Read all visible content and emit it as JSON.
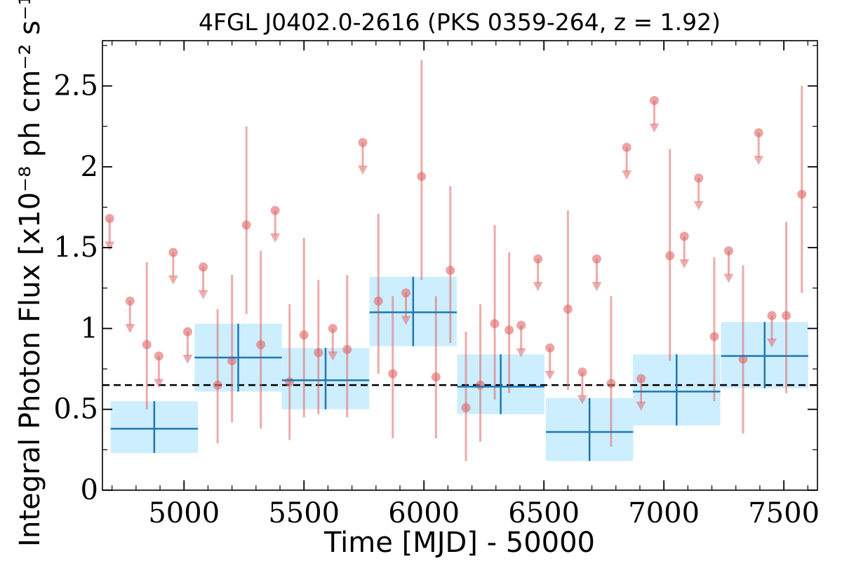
{
  "chart_data": {
    "type": "scatter",
    "title": "4FGL J0402.0-2616 (PKS 0359-264, z = 1.92)",
    "xlabel": "Time [MJD] - 50000",
    "ylabel": "Integral Photon Flux [x10⁻⁸ ph cm⁻² s⁻¹]",
    "xlim": [
      4660,
      7640
    ],
    "ylim": [
      0,
      2.78
    ],
    "xticks": [
      5000,
      5500,
      6000,
      6500,
      7000,
      7500
    ],
    "xtick_labels": [
      "5000",
      "5500",
      "6000",
      "6500",
      "7000",
      "7500"
    ],
    "yticks": [
      0,
      0.5,
      1,
      1.5,
      2,
      2.5
    ],
    "ytick_labels": [
      "0",
      "0.5",
      "1",
      "1.5",
      "2",
      "2.5"
    ],
    "reference_line": {
      "y": 0.65,
      "style": "dashed"
    },
    "colors": {
      "detection": "#e06666",
      "upper_limit": "#e06666",
      "binned_marker": "#1f77b4",
      "binned_box": "#cdeefe",
      "reference_line": "#000000"
    },
    "series": [
      {
        "kind": "binned",
        "points": [
          {
            "x": 4876,
            "xerr": 182,
            "y": 0.38,
            "ylow": 0.23,
            "yhigh": 0.55
          },
          {
            "x": 5226,
            "xerr": 182,
            "y": 0.82,
            "ylow": 0.61,
            "yhigh": 1.03
          },
          {
            "x": 5590,
            "xerr": 182,
            "y": 0.68,
            "ylow": 0.5,
            "yhigh": 0.88
          },
          {
            "x": 5955,
            "xerr": 182,
            "y": 1.1,
            "ylow": 0.89,
            "yhigh": 1.32
          },
          {
            "x": 6320,
            "xerr": 182,
            "y": 0.64,
            "ylow": 0.47,
            "yhigh": 0.84
          },
          {
            "x": 6690,
            "xerr": 182,
            "y": 0.36,
            "ylow": 0.18,
            "yhigh": 0.57
          },
          {
            "x": 7053,
            "xerr": 182,
            "y": 0.61,
            "ylow": 0.4,
            "yhigh": 0.84
          },
          {
            "x": 7420,
            "xerr": 182,
            "y": 0.83,
            "ylow": 0.63,
            "yhigh": 1.04
          }
        ]
      },
      {
        "kind": "detections",
        "points": [
          {
            "x": 4845,
            "y": 0.9,
            "ylow": 0.5,
            "yhigh": 1.41
          },
          {
            "x": 5140,
            "y": 0.65,
            "ylow": 0.29,
            "yhigh": 1.12
          },
          {
            "x": 5200,
            "y": 0.8,
            "ylow": 0.42,
            "yhigh": 1.33
          },
          {
            "x": 5260,
            "y": 1.64,
            "ylow": 1.09,
            "yhigh": 2.25
          },
          {
            "x": 5320,
            "y": 0.9,
            "ylow": 0.38,
            "yhigh": 1.48
          },
          {
            "x": 5440,
            "y": 0.67,
            "ylow": 0.31,
            "yhigh": 1.15
          },
          {
            "x": 5500,
            "y": 0.96,
            "ylow": 0.45,
            "yhigh": 1.56
          },
          {
            "x": 5560,
            "y": 0.85,
            "ylow": 0.47,
            "yhigh": 1.3
          },
          {
            "x": 5680,
            "y": 0.87,
            "ylow": 0.45,
            "yhigh": 1.33
          },
          {
            "x": 5810,
            "y": 1.17,
            "ylow": 0.72,
            "yhigh": 1.71
          },
          {
            "x": 5870,
            "y": 0.72,
            "ylow": 0.32,
            "yhigh": 1.2
          },
          {
            "x": 5990,
            "y": 1.94,
            "ylow": 1.3,
            "yhigh": 2.66
          },
          {
            "x": 6050,
            "y": 0.7,
            "ylow": 0.32,
            "yhigh": 1.2
          },
          {
            "x": 6110,
            "y": 1.36,
            "ylow": 0.91,
            "yhigh": 1.88
          },
          {
            "x": 6175,
            "y": 0.51,
            "ylow": 0.18,
            "yhigh": 0.98
          },
          {
            "x": 6235,
            "y": 0.65,
            "ylow": 0.3,
            "yhigh": 1.15
          },
          {
            "x": 6295,
            "y": 1.03,
            "ylow": 0.56,
            "yhigh": 1.64
          },
          {
            "x": 6355,
            "y": 0.99,
            "ylow": 0.6,
            "yhigh": 1.47
          },
          {
            "x": 6600,
            "y": 1.12,
            "ylow": 0.62,
            "yhigh": 1.73
          },
          {
            "x": 6780,
            "y": 0.66,
            "ylow": 0.27,
            "yhigh": 1.2
          },
          {
            "x": 7025,
            "y": 1.45,
            "ylow": 0.8,
            "yhigh": 2.11
          },
          {
            "x": 7210,
            "y": 0.95,
            "ylow": 0.55,
            "yhigh": 1.44
          },
          {
            "x": 7330,
            "y": 0.81,
            "ylow": 0.35,
            "yhigh": 1.39
          },
          {
            "x": 7510,
            "y": 1.08,
            "ylow": 0.6,
            "yhigh": 1.66
          },
          {
            "x": 7575,
            "y": 1.83,
            "ylow": 1.22,
            "yhigh": 2.5
          }
        ]
      },
      {
        "kind": "upper_limits",
        "points": [
          {
            "x": 4690,
            "y": 1.68,
            "ylow": 1.49
          },
          {
            "x": 4775,
            "y": 1.17,
            "ylow": 0.98
          },
          {
            "x": 4895,
            "y": 0.83,
            "ylow": 0.64
          },
          {
            "x": 4955,
            "y": 1.47,
            "ylow": 1.28
          },
          {
            "x": 5015,
            "y": 0.98,
            "ylow": 0.79
          },
          {
            "x": 5080,
            "y": 1.38,
            "ylow": 1.19
          },
          {
            "x": 5380,
            "y": 1.73,
            "ylow": 1.54
          },
          {
            "x": 5620,
            "y": 1.0,
            "ylow": 0.81
          },
          {
            "x": 5745,
            "y": 2.15,
            "ylow": 1.96
          },
          {
            "x": 5925,
            "y": 1.22,
            "ylow": 1.03
          },
          {
            "x": 6475,
            "y": 1.43,
            "ylow": 1.24
          },
          {
            "x": 6405,
            "y": 1.02,
            "ylow": 0.83
          },
          {
            "x": 6525,
            "y": 0.88,
            "ylow": 0.69
          },
          {
            "x": 6660,
            "y": 0.73,
            "ylow": 0.54
          },
          {
            "x": 6720,
            "y": 1.43,
            "ylow": 1.24
          },
          {
            "x": 6845,
            "y": 2.12,
            "ylow": 1.93
          },
          {
            "x": 6905,
            "y": 0.69,
            "ylow": 0.5
          },
          {
            "x": 6960,
            "y": 2.41,
            "ylow": 2.22
          },
          {
            "x": 7085,
            "y": 1.57,
            "ylow": 1.38
          },
          {
            "x": 7145,
            "y": 1.93,
            "ylow": 1.74
          },
          {
            "x": 7270,
            "y": 1.48,
            "ylow": 1.29
          },
          {
            "x": 7395,
            "y": 2.21,
            "ylow": 2.02
          },
          {
            "x": 7450,
            "y": 1.08,
            "ylow": 0.89
          }
        ]
      }
    ]
  }
}
